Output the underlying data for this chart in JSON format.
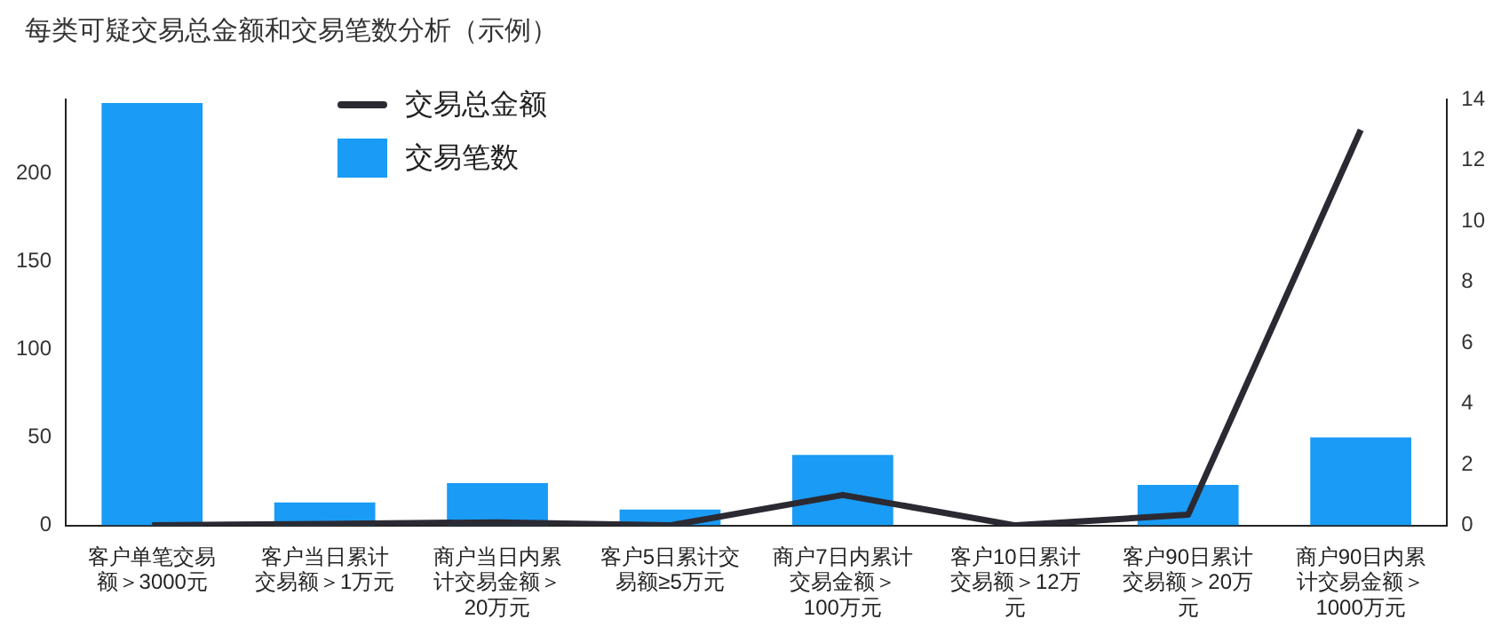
{
  "chart_data": {
    "type": "bar",
    "title": "每类可疑交易总金额和交易笔数分析（示例）",
    "categories": [
      "客户单笔交易额＞3000元",
      "客户当日累计交易额＞1万元",
      "商户当日内累计交易金额＞20万元",
      "客户5日累计交易额≥5万元",
      "商户7日内累计交易金额＞100万元",
      "客户10日累计交易额＞12万元",
      "客户90日累计交易额＞20万元",
      "商户90日内累计交易金额＞1000万元"
    ],
    "series": [
      {
        "name": "交易总金额",
        "type": "line",
        "axis": "y2",
        "color": "#2b2a33",
        "values": [
          0,
          0.05,
          0.1,
          0,
          1,
          0,
          0.35,
          13
        ]
      },
      {
        "name": "交易笔数",
        "color": "#1a9bf5",
        "values": [
          240,
          13,
          24,
          9,
          40,
          0,
          23,
          50
        ]
      }
    ],
    "ylim": [
      0,
      242
    ],
    "yticks": [
      0,
      50,
      100,
      150,
      200
    ],
    "y2lim": [
      0,
      14
    ],
    "y2ticks": [
      0,
      2,
      4,
      6,
      8,
      10,
      12,
      14
    ],
    "grid": false,
    "legend": "top left",
    "marker": "none",
    "line_style": "solid"
  }
}
